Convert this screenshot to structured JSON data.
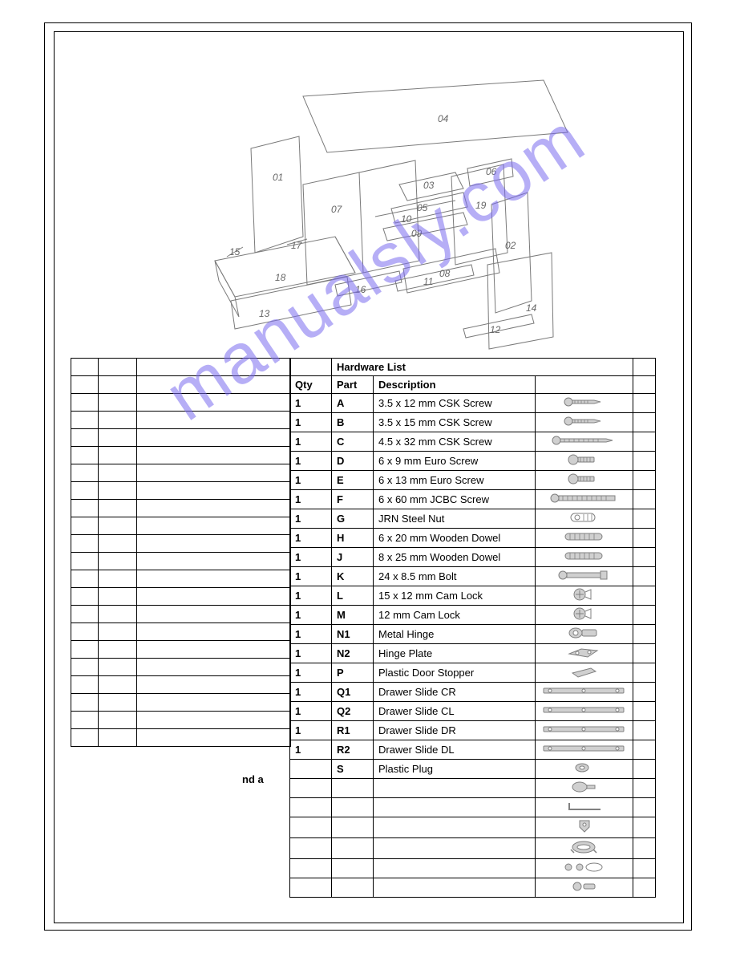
{
  "watermark_text": "manualsly.com",
  "watermark_color": "#7b6cf0",
  "diagram": {
    "labels": [
      "01",
      "02",
      "03",
      "04",
      "05",
      "06",
      "07",
      "08",
      "09",
      "10",
      "11",
      "12",
      "13",
      "14",
      "15",
      "16",
      "17",
      "18",
      "19"
    ],
    "stroke": "#7a7a7a",
    "label_color": "#666666"
  },
  "parts_table": {
    "qty_header": "Qty",
    "rows_present": true
  },
  "hardware_table": {
    "title": "Hardware List",
    "col_part": "Part",
    "col_desc": "Description",
    "rows": [
      {
        "qty": "1",
        "part": "A",
        "desc": "3.5 x 12 mm CSK Screw",
        "icon": "screw-short"
      },
      {
        "qty": "1",
        "part": "B",
        "desc": "3.5 x 15 mm CSK Screw",
        "icon": "screw-short"
      },
      {
        "qty": "1",
        "part": "C",
        "desc": "4.5 x 32 mm CSK Screw",
        "icon": "screw-long"
      },
      {
        "qty": "1",
        "part": "D",
        "desc": "6 x 9 mm Euro Screw",
        "icon": "euro-short"
      },
      {
        "qty": "1",
        "part": "E",
        "desc": "6 x 13 mm Euro Screw",
        "icon": "euro-short"
      },
      {
        "qty": "1",
        "part": "F",
        "desc": "6 x 60 mm JCBC Screw",
        "icon": "bolt-long"
      },
      {
        "qty": "1",
        "part": "G",
        "desc": "JRN Steel Nut",
        "icon": "nut"
      },
      {
        "qty": "1",
        "part": "H",
        "desc": "6 x 20 mm Wooden Dowel",
        "icon": "dowel"
      },
      {
        "qty": "1",
        "part": "J",
        "desc": "8 x 25 mm Wooden Dowel",
        "icon": "dowel"
      },
      {
        "qty": "1",
        "part": "K",
        "desc": "24 x 8.5 mm Bolt",
        "icon": "bolt-short"
      },
      {
        "qty": "1",
        "part": "L",
        "desc": "15 x 12 mm Cam Lock",
        "icon": "cam"
      },
      {
        "qty": "1",
        "part": "M",
        "desc": "12 mm Cam Lock",
        "icon": "cam"
      },
      {
        "qty": "1",
        "part": "N1",
        "desc": "Metal Hinge",
        "icon": "hinge"
      },
      {
        "qty": "1",
        "part": "N2",
        "desc": "Hinge Plate",
        "icon": "plate"
      },
      {
        "qty": "1",
        "part": "P",
        "desc": "Plastic Door Stopper",
        "icon": "stopper"
      },
      {
        "qty": "1",
        "part": "Q1",
        "desc": "Drawer Slide CR",
        "icon": "slide"
      },
      {
        "qty": "1",
        "part": "Q2",
        "desc": "Drawer Slide CL",
        "icon": "slide"
      },
      {
        "qty": "1",
        "part": "R1",
        "desc": "Drawer Slide DR",
        "icon": "slide"
      },
      {
        "qty": "1",
        "part": "R2",
        "desc": "Drawer Slide DL",
        "icon": "slide"
      },
      {
        "qty": "",
        "part": "S",
        "desc": "Plastic Plug",
        "icon": "plug"
      },
      {
        "qty": "",
        "part": "",
        "desc": "",
        "icon": "cap"
      },
      {
        "qty": "",
        "part": "",
        "desc": "",
        "icon": "allen"
      },
      {
        "qty": "",
        "part": "",
        "desc": "",
        "icon": "key"
      },
      {
        "qty": "",
        "part": "",
        "desc": "",
        "icon": "handle"
      },
      {
        "qty": "",
        "part": "",
        "desc": "",
        "icon": "misc1"
      },
      {
        "qty": "",
        "part": "",
        "desc": "",
        "icon": "misc2"
      }
    ]
  },
  "floating_text": "nd a",
  "colors": {
    "border": "#000000",
    "background": "#ffffff",
    "hw_stroke": "#808080",
    "hw_fill": "#d0d0d0"
  }
}
